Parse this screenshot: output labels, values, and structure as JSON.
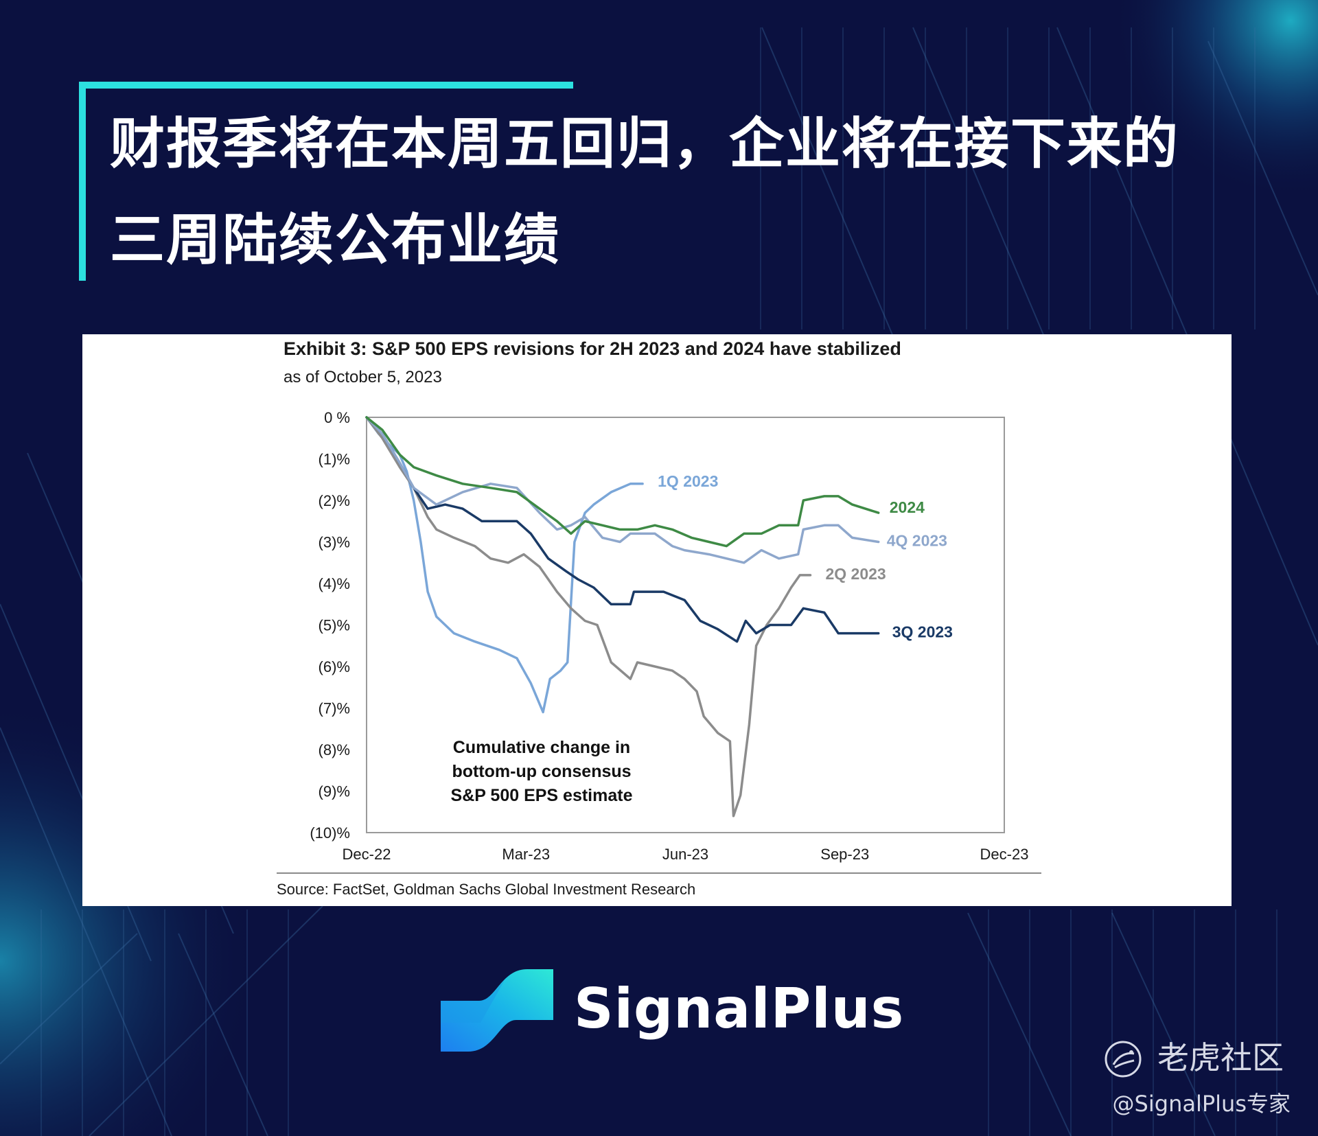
{
  "header": {
    "title_line1": "财报季将在本周五回归，企业将在接下来的",
    "title_line2": "三周陆续公布业绩",
    "accent_color": "#2ce0e0",
    "background_color": "#0b1140"
  },
  "exhibit": {
    "title": "Exhibit 3: S&P 500 EPS revisions for 2H 2023 and 2024 have stabilized",
    "subtitle": "as of October 5, 2023",
    "source": "Source: FactSet, Goldman Sachs Global Investment Research"
  },
  "chart_data": {
    "type": "line",
    "title": "Exhibit 3: S&P 500 EPS revisions for 2H 2023 and 2024 have stabilized",
    "subtitle": "as of October 5, 2023",
    "xlabel": "",
    "ylabel": "",
    "annotation": [
      "Cumulative change in",
      "bottom-up consensus",
      "S&P 500 EPS estimate"
    ],
    "x_ticks": [
      "Dec-22",
      "Mar-23",
      "Jun-23",
      "Sep-23",
      "Dec-23"
    ],
    "y_ticks": [
      "0 %",
      "(1)%",
      "(2)%",
      "(3)%",
      "(4)%",
      "(5)%",
      "(6)%",
      "(7)%",
      "(8)%",
      "(9)%",
      "(10)%"
    ],
    "x_range": [
      "2022-12-01",
      "2023-12-01"
    ],
    "ylim": [
      -10,
      0
    ],
    "grid": false,
    "legend": "inline labels at line ends",
    "series": [
      {
        "name": "1Q 2023",
        "color": "#7aa6d8",
        "points": [
          [
            "2022-12-01",
            0.0
          ],
          [
            "2022-12-08",
            -0.4
          ],
          [
            "2022-12-15",
            -0.7
          ],
          [
            "2022-12-20",
            -0.9
          ],
          [
            "2022-12-24",
            -1.3
          ],
          [
            "2022-12-28",
            -2.0
          ],
          [
            "2023-01-01",
            -3.0
          ],
          [
            "2023-01-05",
            -4.2
          ],
          [
            "2023-01-10",
            -4.8
          ],
          [
            "2023-01-20",
            -5.2
          ],
          [
            "2023-02-01",
            -5.4
          ],
          [
            "2023-02-15",
            -5.6
          ],
          [
            "2023-02-25",
            -5.8
          ],
          [
            "2023-03-05",
            -6.4
          ],
          [
            "2023-03-12",
            -7.1
          ],
          [
            "2023-03-16",
            -6.3
          ],
          [
            "2023-03-22",
            -6.1
          ],
          [
            "2023-03-26",
            -5.9
          ],
          [
            "2023-03-30",
            -3.0
          ],
          [
            "2023-04-05",
            -2.3
          ],
          [
            "2023-04-10",
            -2.1
          ],
          [
            "2023-04-20",
            -1.8
          ],
          [
            "2023-05-01",
            -1.6
          ],
          [
            "2023-05-08",
            -1.6
          ]
        ]
      },
      {
        "name": "2Q 2023",
        "color": "#8c8c8c",
        "points": [
          [
            "2022-12-01",
            0.0
          ],
          [
            "2022-12-10",
            -0.5
          ],
          [
            "2022-12-20",
            -1.2
          ],
          [
            "2022-12-28",
            -1.7
          ],
          [
            "2023-01-05",
            -2.4
          ],
          [
            "2023-01-10",
            -2.7
          ],
          [
            "2023-01-20",
            -2.9
          ],
          [
            "2023-02-01",
            -3.1
          ],
          [
            "2023-02-10",
            -3.4
          ],
          [
            "2023-02-20",
            -3.5
          ],
          [
            "2023-03-01",
            -3.3
          ],
          [
            "2023-03-10",
            -3.6
          ],
          [
            "2023-03-20",
            -4.2
          ],
          [
            "2023-03-28",
            -4.6
          ],
          [
            "2023-04-05",
            -4.9
          ],
          [
            "2023-04-12",
            -5.0
          ],
          [
            "2023-04-20",
            -5.9
          ],
          [
            "2023-05-01",
            -6.3
          ],
          [
            "2023-05-05",
            -5.9
          ],
          [
            "2023-05-15",
            -6.0
          ],
          [
            "2023-05-25",
            -6.1
          ],
          [
            "2023-06-01",
            -6.3
          ],
          [
            "2023-06-08",
            -6.6
          ],
          [
            "2023-06-12",
            -7.2
          ],
          [
            "2023-06-20",
            -7.6
          ],
          [
            "2023-06-27",
            -7.8
          ],
          [
            "2023-06-29",
            -9.6
          ],
          [
            "2023-07-03",
            -9.1
          ],
          [
            "2023-07-08",
            -7.4
          ],
          [
            "2023-07-12",
            -5.5
          ],
          [
            "2023-07-18",
            -5.0
          ],
          [
            "2023-07-25",
            -4.6
          ],
          [
            "2023-08-01",
            -4.1
          ],
          [
            "2023-08-06",
            -3.8
          ],
          [
            "2023-08-12",
            -3.8
          ]
        ]
      },
      {
        "name": "3Q 2023",
        "color": "#1a3a66",
        "points": [
          [
            "2022-12-01",
            0.0
          ],
          [
            "2022-12-10",
            -0.4
          ],
          [
            "2022-12-20",
            -1.1
          ],
          [
            "2022-12-28",
            -1.7
          ],
          [
            "2023-01-05",
            -2.2
          ],
          [
            "2023-01-15",
            -2.1
          ],
          [
            "2023-01-25",
            -2.2
          ],
          [
            "2023-02-05",
            -2.5
          ],
          [
            "2023-02-15",
            -2.5
          ],
          [
            "2023-02-25",
            -2.5
          ],
          [
            "2023-03-05",
            -2.8
          ],
          [
            "2023-03-15",
            -3.4
          ],
          [
            "2023-03-25",
            -3.7
          ],
          [
            "2023-04-01",
            -3.9
          ],
          [
            "2023-04-10",
            -4.1
          ],
          [
            "2023-04-20",
            -4.5
          ],
          [
            "2023-05-01",
            -4.5
          ],
          [
            "2023-05-03",
            -4.2
          ],
          [
            "2023-05-20",
            -4.2
          ],
          [
            "2023-06-01",
            -4.4
          ],
          [
            "2023-06-10",
            -4.9
          ],
          [
            "2023-06-20",
            -5.1
          ],
          [
            "2023-07-01",
            -5.4
          ],
          [
            "2023-07-06",
            -4.9
          ],
          [
            "2023-07-12",
            -5.2
          ],
          [
            "2023-07-20",
            -5.0
          ],
          [
            "2023-08-01",
            -5.0
          ],
          [
            "2023-08-08",
            -4.6
          ],
          [
            "2023-08-20",
            -4.7
          ],
          [
            "2023-08-28",
            -5.2
          ],
          [
            "2023-09-10",
            -5.2
          ],
          [
            "2023-09-20",
            -5.2
          ]
        ]
      },
      {
        "name": "4Q 2023",
        "color": "#8ea7cc",
        "points": [
          [
            "2022-12-01",
            0.0
          ],
          [
            "2022-12-10",
            -0.4
          ],
          [
            "2022-12-20",
            -1.1
          ],
          [
            "2022-12-28",
            -1.7
          ],
          [
            "2023-01-10",
            -2.1
          ],
          [
            "2023-01-25",
            -1.8
          ],
          [
            "2023-02-10",
            -1.6
          ],
          [
            "2023-02-25",
            -1.7
          ],
          [
            "2023-03-10",
            -2.3
          ],
          [
            "2023-03-20",
            -2.7
          ],
          [
            "2023-03-28",
            -2.6
          ],
          [
            "2023-04-05",
            -2.4
          ],
          [
            "2023-04-15",
            -2.9
          ],
          [
            "2023-04-25",
            -3.0
          ],
          [
            "2023-05-01",
            -2.8
          ],
          [
            "2023-05-15",
            -2.8
          ],
          [
            "2023-05-25",
            -3.1
          ],
          [
            "2023-06-01",
            -3.2
          ],
          [
            "2023-06-15",
            -3.3
          ],
          [
            "2023-06-25",
            -3.4
          ],
          [
            "2023-07-05",
            -3.5
          ],
          [
            "2023-07-15",
            -3.2
          ],
          [
            "2023-07-25",
            -3.4
          ],
          [
            "2023-08-05",
            -3.3
          ],
          [
            "2023-08-08",
            -2.7
          ],
          [
            "2023-08-20",
            -2.6
          ],
          [
            "2023-08-28",
            -2.6
          ],
          [
            "2023-09-05",
            -2.9
          ],
          [
            "2023-09-20",
            -3.0
          ]
        ]
      },
      {
        "name": "2024",
        "color": "#3e8a45",
        "points": [
          [
            "2022-12-01",
            0.0
          ],
          [
            "2022-12-10",
            -0.3
          ],
          [
            "2022-12-20",
            -0.9
          ],
          [
            "2022-12-28",
            -1.2
          ],
          [
            "2023-01-10",
            -1.4
          ],
          [
            "2023-01-25",
            -1.6
          ],
          [
            "2023-02-10",
            -1.7
          ],
          [
            "2023-02-25",
            -1.8
          ],
          [
            "2023-03-10",
            -2.2
          ],
          [
            "2023-03-20",
            -2.5
          ],
          [
            "2023-03-28",
            -2.8
          ],
          [
            "2023-04-05",
            -2.5
          ],
          [
            "2023-04-15",
            -2.6
          ],
          [
            "2023-04-25",
            -2.7
          ],
          [
            "2023-05-05",
            -2.7
          ],
          [
            "2023-05-15",
            -2.6
          ],
          [
            "2023-05-25",
            -2.7
          ],
          [
            "2023-06-05",
            -2.9
          ],
          [
            "2023-06-15",
            -3.0
          ],
          [
            "2023-06-25",
            -3.1
          ],
          [
            "2023-07-05",
            -2.8
          ],
          [
            "2023-07-15",
            -2.8
          ],
          [
            "2023-07-25",
            -2.6
          ],
          [
            "2023-08-05",
            -2.6
          ],
          [
            "2023-08-08",
            -2.0
          ],
          [
            "2023-08-20",
            -1.9
          ],
          [
            "2023-08-28",
            -1.9
          ],
          [
            "2023-09-05",
            -2.1
          ],
          [
            "2023-09-20",
            -2.3
          ]
        ]
      }
    ]
  },
  "brand": {
    "name": "SignalPlus"
  },
  "watermark": {
    "community": "老虎社区",
    "handle": "@SignalPlus专家"
  }
}
